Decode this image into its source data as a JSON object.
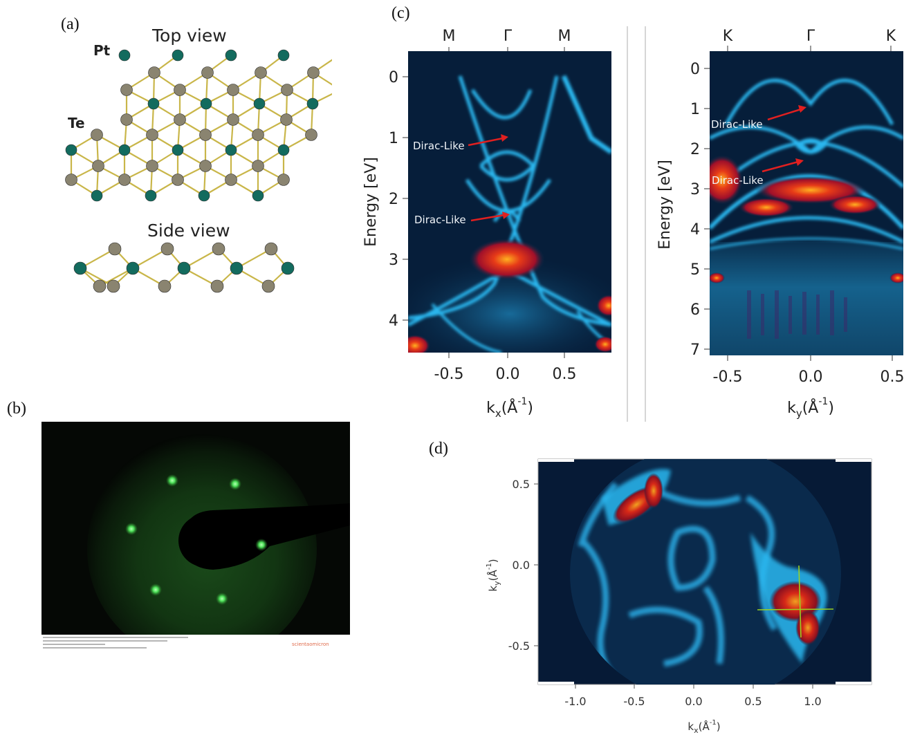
{
  "panels": {
    "a": {
      "letter": "(a)",
      "top_view_title": "Top view",
      "side_view_title": "Side view",
      "atom_label_pt": "Pt",
      "atom_label_te": "Te",
      "colors": {
        "pt": "#136b5e",
        "te": "#8a8470",
        "bond": "#c9b649"
      }
    },
    "b": {
      "letter": "(b)",
      "watermark": "scientaomicron",
      "colors": {
        "background": "#050805",
        "halo": "#1f6b1f",
        "spot": "#5cff6a"
      }
    },
    "c": {
      "letter": "(c)",
      "left_plot": {
        "top_labels": [
          "M",
          "Γ",
          "M"
        ],
        "y_ticks": [
          "0",
          "1",
          "2",
          "3",
          "4"
        ],
        "x_ticks": [
          "-0.5",
          "0.0",
          "0.5"
        ],
        "y_axis_label": "Energy [eV]",
        "x_axis_label_main": "k",
        "x_axis_label_sub": "x",
        "x_axis_label_unit": "(Å",
        "x_axis_label_exp": "-1",
        "x_axis_label_close": ")",
        "annotations": [
          "Dirac-Like",
          "Dirac-Like"
        ]
      },
      "right_plot": {
        "top_labels": [
          "K",
          "Γ",
          "K"
        ],
        "y_ticks": [
          "0",
          "1",
          "2",
          "3",
          "4",
          "5",
          "6",
          "7"
        ],
        "x_ticks": [
          "-0.5",
          "0.0",
          "0.5"
        ],
        "y_axis_label": "Energy [eV]",
        "x_axis_label_main": "k",
        "x_axis_label_sub": "y",
        "x_axis_label_unit": "(Å",
        "x_axis_label_exp": "-1",
        "x_axis_label_close": ")",
        "annotations": [
          "Dirac-Like",
          "Dirac-Like"
        ]
      },
      "colors": {
        "background": "#061e3a",
        "band": "#2ab8f0",
        "hot": "#e0281a",
        "arrow": "#e02020"
      }
    },
    "d": {
      "letter": "(d)",
      "y_ticks": [
        "0.5",
        "0.0",
        "-0.5"
      ],
      "x_ticks": [
        "-1.0",
        "-0.5",
        "0.0",
        "0.5",
        "1.0"
      ],
      "y_axis_label": "k",
      "y_axis_label_sub": "y",
      "y_axis_label_unit": "(Å",
      "y_axis_label_exp": "-1",
      "y_axis_label_close": ")",
      "x_axis_label": "k",
      "x_axis_label_sub": "x",
      "x_axis_label_unit": "(Å",
      "x_axis_label_exp": "-1",
      "x_axis_label_close": ")",
      "colors": {
        "background": "#061e3a",
        "band": "#2aa8e0",
        "hot": "#d62818",
        "cursor": "#9bd020"
      }
    }
  }
}
